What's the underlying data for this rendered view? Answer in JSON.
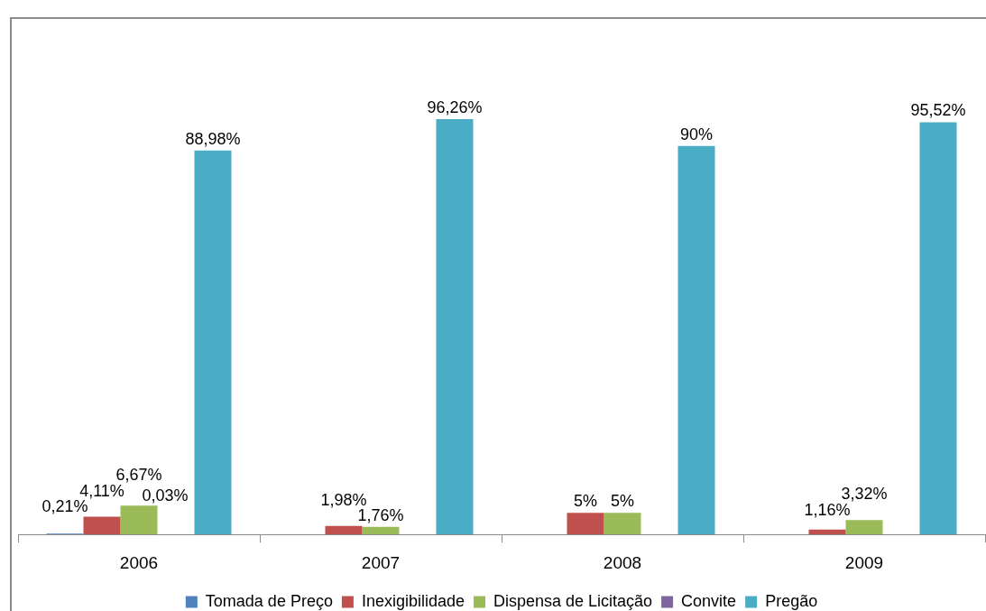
{
  "chart_data": {
    "type": "bar",
    "categories": [
      "2006",
      "2007",
      "2008",
      "2009"
    ],
    "series": [
      {
        "name": "Tomada de Preço",
        "color": "#4f81bd",
        "values": [
          0.21,
          null,
          null,
          null
        ],
        "value_labels": [
          "0,21%",
          null,
          null,
          null
        ]
      },
      {
        "name": "Inexigibilidade",
        "color": "#c0504d",
        "values": [
          4.11,
          1.98,
          5,
          1.16
        ],
        "value_labels": [
          "4,11%",
          "1,98%",
          "5%",
          "1,16%"
        ]
      },
      {
        "name": "Dispensa de Licitação",
        "color": "#9bbb59",
        "values": [
          6.67,
          1.76,
          5,
          3.32
        ],
        "value_labels": [
          "6,67%",
          "1,76%",
          "5%",
          "3,32%"
        ]
      },
      {
        "name": "Convite",
        "color": "#8064a2",
        "values": [
          0.03,
          null,
          null,
          null
        ],
        "value_labels": [
          "0,03%",
          null,
          null,
          null
        ]
      },
      {
        "name": "Pregão",
        "color": "#4bacc6",
        "values": [
          88.98,
          96.26,
          90,
          95.52
        ],
        "value_labels": [
          "88,98%",
          "96,26%",
          "90%",
          "95,52%"
        ]
      }
    ],
    "legend": "bottom",
    "tick_labels": "x"
  }
}
